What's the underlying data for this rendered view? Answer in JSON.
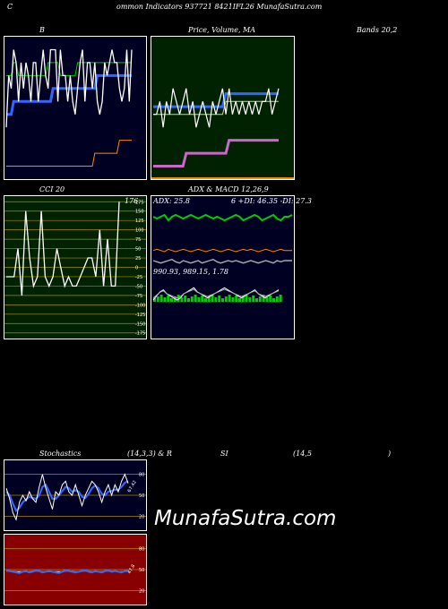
{
  "header": {
    "c": "C",
    "title": "ommon  Indicators 937721 8421IFL26  MunafaSutra.com"
  },
  "labels": {
    "b": "B",
    "price_ma": "Price,  Volume,  MA",
    "bands": "Bands 20,2",
    "cci": "CCI 20",
    "adx_macd": "ADX  & MACD 12,26,9",
    "stoch": "Stochastics",
    "stoch_params": "(14,3,3) & R",
    "si": "SI",
    "rsi_params": "(14,5",
    "close_paren": ")"
  },
  "cci": {
    "current": "176",
    "ticks": [
      "175",
      "150",
      "125",
      "100",
      "75",
      "50",
      "25",
      "0",
      "-25",
      "-50",
      "-75",
      "-100",
      "-125",
      "-150",
      "-175"
    ]
  },
  "adx": {
    "line1": "ADX: 25.8",
    "line1b": "6  +DI: 46.35 -DI: 27.3",
    "macd": "990.93,  989.15,  1.78"
  },
  "stoch": {
    "ticks": [
      "80",
      "50",
      "20"
    ],
    "value": "67.42"
  },
  "rsi": {
    "ticks": [
      "80",
      "50",
      "20"
    ],
    "value": "47.8"
  },
  "watermark": "MunafaSutra.com",
  "colors": {
    "bb_bg": "#000022",
    "price_bg": "#002200",
    "cci_bg": "#002200",
    "adx_bg": "#000022",
    "stoch_bg": "#000022",
    "rsi_bg": "#880000",
    "blue": "#3366ff",
    "green": "#00cc00",
    "orange": "#ff8800"
  },
  "chart_data": [
    {
      "type": "line",
      "panel": "Bollinger Bands",
      "series": [
        {
          "values": [
            4,
            8,
            7,
            10,
            9,
            6,
            9,
            7,
            9,
            8,
            6,
            9,
            9,
            6,
            8,
            10,
            8,
            7,
            10,
            10,
            10,
            6,
            10,
            8,
            8,
            6,
            8,
            6,
            5,
            7,
            9,
            10,
            6,
            9,
            9,
            7,
            9,
            6,
            5,
            6,
            9,
            8,
            9,
            10,
            9,
            9,
            7,
            6,
            7,
            10,
            6,
            10
          ]
        },
        {
          "values": [
            8,
            8,
            8,
            9,
            9,
            8,
            8,
            8,
            8,
            8,
            8,
            8,
            8,
            8,
            8,
            8,
            8,
            9,
            9,
            9,
            9,
            9,
            8,
            8,
            8,
            8,
            8,
            8,
            8,
            9,
            9,
            9,
            9,
            9,
            9,
            9,
            9,
            9,
            9,
            9,
            9,
            9,
            9,
            9,
            9,
            9,
            9,
            9,
            9,
            9,
            9,
            9
          ]
        },
        {
          "values": [
            5,
            5,
            5,
            6,
            6,
            6,
            6,
            6,
            6,
            6,
            6,
            6,
            6,
            6,
            6,
            6,
            6,
            6,
            6,
            7,
            7,
            7,
            7,
            7,
            7,
            7,
            7,
            7,
            7,
            7,
            7,
            7,
            7,
            7,
            7,
            7,
            7,
            8,
            8,
            8,
            8,
            8,
            8,
            8,
            8,
            8,
            8,
            8,
            8,
            8,
            8,
            8
          ]
        },
        {
          "values": [
            1,
            1,
            1,
            1,
            1,
            1,
            1,
            1,
            1,
            1,
            1,
            1,
            1,
            1,
            1,
            1,
            1,
            1,
            1,
            1,
            1,
            1,
            1,
            1,
            1,
            1,
            1,
            1,
            1,
            1,
            1,
            1,
            1,
            1,
            1,
            1,
            2,
            2,
            2,
            2,
            2,
            2,
            2,
            2,
            2,
            2,
            3,
            3,
            3,
            3,
            3,
            3
          ]
        }
      ]
    },
    {
      "type": "line",
      "panel": "Price, Volume, MA",
      "series": [
        {
          "values": [
            5,
            5,
            6,
            4,
            6,
            5,
            7,
            6,
            5,
            6,
            7,
            5,
            6,
            4,
            5,
            6,
            5,
            4,
            6,
            5,
            6,
            7,
            5,
            7,
            5,
            6,
            5,
            6,
            5,
            6,
            5,
            6,
            5,
            6,
            6,
            7,
            5,
            6,
            7
          ]
        },
        {
          "values": [
            5,
            5,
            5,
            5,
            5,
            5,
            5,
            5,
            5,
            5,
            5,
            5,
            5,
            5,
            5,
            5,
            5,
            5,
            5,
            5,
            5,
            5,
            6,
            6,
            6,
            6,
            6,
            6,
            6,
            6,
            6,
            6,
            6,
            6,
            6,
            6,
            6,
            6,
            6
          ]
        },
        {
          "values": [
            1,
            1,
            1,
            1,
            1,
            1,
            1,
            1,
            1,
            1,
            2,
            2,
            2,
            2,
            2,
            2,
            2,
            2,
            2,
            2,
            2,
            2,
            2,
            3,
            3,
            3,
            3,
            3,
            3,
            3,
            3,
            3,
            3,
            3,
            3,
            3,
            3,
            3,
            3
          ]
        }
      ]
    },
    {
      "type": "line",
      "panel": "CCI 20",
      "series": [
        {
          "values": [
            -25,
            -25,
            -25,
            50,
            -75,
            150,
            25,
            -50,
            -25,
            150,
            -25,
            -50,
            -25,
            50,
            0,
            -50,
            -25,
            -50,
            -50,
            -25,
            0,
            25,
            25,
            -25,
            100,
            -50,
            75,
            -50,
            -50,
            175
          ]
        }
      ]
    },
    {
      "type": "line",
      "panel": "ADX & MACD",
      "series": [
        {
          "values": [
            46,
            45,
            46,
            47,
            44,
            46,
            47,
            46,
            45,
            46,
            47,
            46,
            45,
            46,
            47,
            46,
            45,
            46,
            45,
            44,
            45,
            46,
            47,
            46,
            44,
            45,
            46,
            47,
            46,
            44,
            45,
            46,
            47,
            45,
            44,
            46,
            46,
            47
          ]
        },
        {
          "values": [
            27,
            28,
            27,
            26,
            28,
            27,
            26,
            27,
            28,
            27,
            26,
            27,
            28,
            27,
            26,
            27,
            28,
            27,
            26,
            27,
            28,
            27,
            26,
            27,
            28,
            27,
            28,
            27,
            26,
            27,
            28,
            27,
            26,
            27,
            28,
            27,
            27,
            27
          ]
        },
        {
          "values": [
            26,
            25,
            24,
            25,
            26,
            27,
            25,
            24,
            26,
            25,
            24,
            25,
            26,
            24,
            25,
            26,
            27,
            25,
            24,
            25,
            26,
            25,
            26,
            25,
            24,
            25,
            26,
            25,
            24,
            25,
            26,
            25,
            24,
            26,
            25,
            26,
            26,
            26
          ]
        }
      ]
    },
    {
      "type": "line",
      "panel": "Stochastics",
      "ylim": [
        0,
        100
      ],
      "series": [
        {
          "values": [
            60,
            45,
            25,
            15,
            40,
            50,
            42,
            55,
            45,
            40,
            62,
            80,
            60,
            45,
            30,
            55,
            50,
            65,
            70,
            55,
            50,
            65,
            50,
            35,
            50,
            60,
            70,
            65,
            55,
            40,
            55,
            65,
            50,
            65,
            55,
            70,
            80,
            67
          ]
        },
        {
          "values": [
            55,
            50,
            38,
            28,
            32,
            40,
            44,
            48,
            46,
            45,
            50,
            62,
            65,
            55,
            45,
            45,
            50,
            56,
            62,
            60,
            55,
            57,
            55,
            48,
            46,
            52,
            60,
            64,
            60,
            52,
            50,
            55,
            56,
            58,
            58,
            62,
            68,
            70
          ]
        }
      ]
    },
    {
      "type": "line",
      "panel": "RSI",
      "ylim": [
        0,
        100
      ],
      "series": [
        {
          "values": [
            49,
            48,
            47,
            46,
            45,
            47,
            48,
            46,
            47,
            49,
            48,
            46,
            47,
            48,
            47,
            46,
            45,
            47,
            49,
            48,
            47,
            46,
            47,
            48,
            49,
            47,
            46,
            48,
            47,
            46,
            48,
            49,
            47,
            48,
            47,
            46,
            48,
            48
          ]
        },
        {
          "values": [
            48,
            48,
            48,
            47,
            47,
            47,
            47,
            47,
            48,
            48,
            48,
            47,
            47,
            47,
            47,
            47,
            47,
            47,
            48,
            48,
            48,
            47,
            47,
            48,
            48,
            48,
            47,
            47,
            47,
            47,
            48,
            48,
            48,
            48,
            47,
            47,
            48,
            48
          ]
        }
      ]
    }
  ]
}
